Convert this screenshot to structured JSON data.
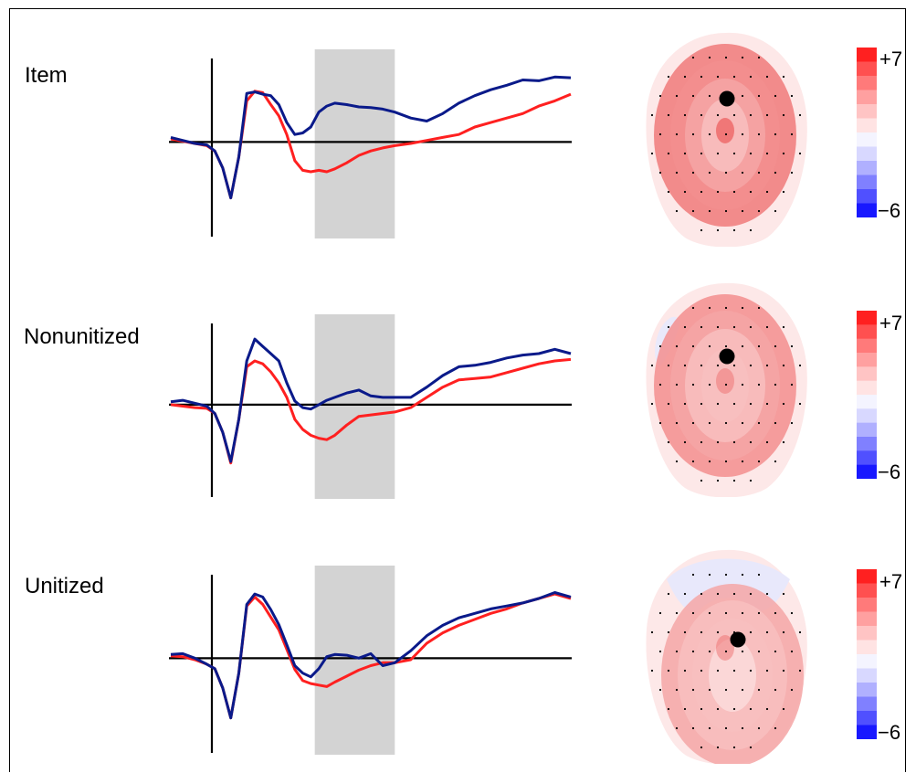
{
  "panels": [
    {
      "label": "Item"
    },
    {
      "label": "Nonunitized"
    },
    {
      "label": "Unitized"
    }
  ],
  "colorbar": {
    "max_label": "+7",
    "min_label": "−6",
    "max": 7,
    "min": -6,
    "colors": [
      "#ff2020",
      "#ff5050",
      "#ff7a7a",
      "#ffa0a0",
      "#ffc4c4",
      "#ffe3e3",
      "#f4f4ff",
      "#d8d8ff",
      "#b0b0ff",
      "#8080ff",
      "#5050ff",
      "#1818ff"
    ]
  },
  "chart_data": [
    {
      "type": "line",
      "title": "Item",
      "grid": false,
      "shaded_window": [
        0.36,
        0.56
      ],
      "x": [
        0,
        0.03,
        0.06,
        0.09,
        0.11,
        0.13,
        0.15,
        0.17,
        0.19,
        0.21,
        0.23,
        0.25,
        0.27,
        0.29,
        0.31,
        0.33,
        0.35,
        0.37,
        0.39,
        0.41,
        0.44,
        0.47,
        0.5,
        0.53,
        0.56,
        0.6,
        0.64,
        0.68,
        0.72,
        0.76,
        0.8,
        0.84,
        0.88,
        0.92,
        0.96,
        1.0
      ],
      "series": [
        {
          "color": "#ff2020",
          "values": [
            0.04,
            0.01,
            -0.02,
            -0.05,
            -0.12,
            -0.35,
            -0.75,
            -0.2,
            0.55,
            0.68,
            0.66,
            0.5,
            0.35,
            0.1,
            -0.25,
            -0.38,
            -0.4,
            -0.38,
            -0.4,
            -0.36,
            -0.28,
            -0.18,
            -0.12,
            -0.08,
            -0.05,
            -0.02,
            0.02,
            0.06,
            0.1,
            0.2,
            0.26,
            0.32,
            0.38,
            0.48,
            0.55,
            0.64
          ]
        },
        {
          "color": "#0a1a8a",
          "values": [
            0.06,
            0.02,
            -0.02,
            -0.04,
            -0.12,
            -0.35,
            -0.75,
            -0.2,
            0.65,
            0.67,
            0.64,
            0.62,
            0.5,
            0.26,
            0.1,
            0.12,
            0.2,
            0.4,
            0.48,
            0.52,
            0.5,
            0.47,
            0.46,
            0.44,
            0.4,
            0.32,
            0.28,
            0.38,
            0.52,
            0.62,
            0.7,
            0.76,
            0.83,
            0.82,
            0.87,
            0.86
          ]
        }
      ]
    },
    {
      "type": "line",
      "title": "Nonunitized",
      "grid": false,
      "shaded_window": [
        0.36,
        0.56
      ],
      "x": [
        0,
        0.03,
        0.06,
        0.09,
        0.11,
        0.13,
        0.15,
        0.17,
        0.19,
        0.21,
        0.23,
        0.25,
        0.27,
        0.29,
        0.31,
        0.33,
        0.35,
        0.37,
        0.39,
        0.41,
        0.44,
        0.47,
        0.5,
        0.53,
        0.56,
        0.6,
        0.64,
        0.68,
        0.72,
        0.76,
        0.8,
        0.84,
        0.88,
        0.92,
        0.96,
        1.0
      ],
      "series": [
        {
          "color": "#ff2020",
          "values": [
            0.0,
            -0.02,
            -0.04,
            -0.05,
            -0.12,
            -0.38,
            -0.8,
            -0.2,
            0.52,
            0.6,
            0.56,
            0.45,
            0.3,
            0.1,
            -0.2,
            -0.34,
            -0.42,
            -0.46,
            -0.48,
            -0.42,
            -0.28,
            -0.16,
            -0.14,
            -0.12,
            -0.1,
            -0.04,
            0.1,
            0.24,
            0.34,
            0.36,
            0.38,
            0.44,
            0.5,
            0.56,
            0.6,
            0.62
          ]
        },
        {
          "color": "#0a1a8a",
          "values": [
            0.04,
            0.06,
            0.02,
            -0.02,
            -0.12,
            -0.38,
            -0.78,
            -0.2,
            0.6,
            0.9,
            0.8,
            0.7,
            0.6,
            0.3,
            0.05,
            -0.04,
            -0.06,
            0.0,
            0.06,
            0.1,
            0.16,
            0.2,
            0.12,
            0.1,
            0.1,
            0.1,
            0.24,
            0.4,
            0.52,
            0.54,
            0.58,
            0.64,
            0.68,
            0.7,
            0.76,
            0.7
          ]
        }
      ]
    },
    {
      "type": "line",
      "title": "Unitized",
      "grid": false,
      "shaded_window": [
        0.36,
        0.56
      ],
      "x": [
        0,
        0.03,
        0.06,
        0.09,
        0.11,
        0.13,
        0.15,
        0.17,
        0.19,
        0.21,
        0.23,
        0.25,
        0.27,
        0.29,
        0.31,
        0.33,
        0.35,
        0.37,
        0.39,
        0.41,
        0.44,
        0.47,
        0.5,
        0.53,
        0.56,
        0.6,
        0.64,
        0.68,
        0.72,
        0.76,
        0.8,
        0.84,
        0.88,
        0.92,
        0.96,
        1.0
      ],
      "series": [
        {
          "color": "#ff2020",
          "values": [
            0.03,
            0.02,
            -0.02,
            -0.08,
            -0.14,
            -0.4,
            -0.8,
            -0.2,
            0.7,
            0.82,
            0.72,
            0.55,
            0.38,
            0.12,
            -0.15,
            -0.3,
            -0.34,
            -0.36,
            -0.38,
            -0.32,
            -0.24,
            -0.16,
            -0.1,
            -0.06,
            -0.06,
            -0.02,
            0.2,
            0.34,
            0.44,
            0.52,
            0.6,
            0.66,
            0.74,
            0.8,
            0.86,
            0.8
          ]
        },
        {
          "color": "#0a1a8a",
          "values": [
            0.05,
            0.06,
            0.0,
            -0.08,
            -0.14,
            -0.4,
            -0.8,
            -0.2,
            0.72,
            0.86,
            0.82,
            0.65,
            0.45,
            0.18,
            -0.1,
            -0.2,
            -0.25,
            -0.14,
            0.02,
            0.05,
            0.04,
            0.0,
            0.06,
            -0.1,
            -0.06,
            0.1,
            0.3,
            0.44,
            0.54,
            0.6,
            0.66,
            0.7,
            0.74,
            0.8,
            0.88,
            0.82
          ]
        }
      ]
    }
  ],
  "topomaps": [
    {
      "intensity": [
        0.95,
        0.7,
        0.5,
        0.32
      ]
    },
    {
      "intensity": [
        0.7,
        0.48,
        0.3,
        0.14
      ]
    },
    {
      "intensity": [
        0.55,
        0.35,
        0.18,
        0.08
      ]
    }
  ]
}
